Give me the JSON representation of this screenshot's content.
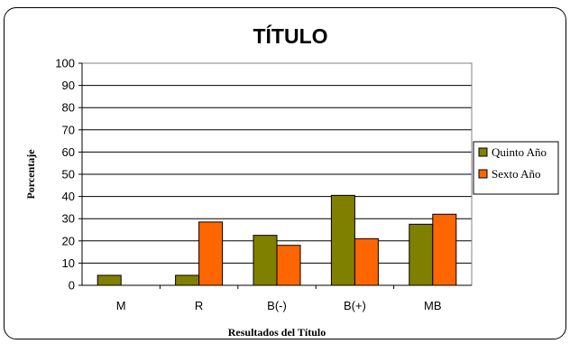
{
  "chart_data": {
    "type": "bar",
    "title": "TÍTULO",
    "xlabel": "Resultados del Título",
    "ylabel": "Porcentaje",
    "categories": [
      "M",
      "R",
      "B(-)",
      "B(+)",
      "MB"
    ],
    "series": [
      {
        "name": "Quinto Año",
        "values": [
          4.5,
          4.5,
          22.5,
          40.5,
          27.5
        ]
      },
      {
        "name": "Sexto Año",
        "values": [
          0,
          28.5,
          18,
          21,
          32
        ]
      }
    ],
    "ylim": [
      0,
      100
    ],
    "yticks": [
      0,
      10,
      20,
      30,
      40,
      50,
      60,
      70,
      80,
      90,
      100
    ],
    "grid": true,
    "legend_position": "right",
    "colors": {
      "series": [
        "#808000",
        "#FF6600"
      ],
      "plot_background": "#ffffff",
      "gridline": "#000000"
    }
  }
}
